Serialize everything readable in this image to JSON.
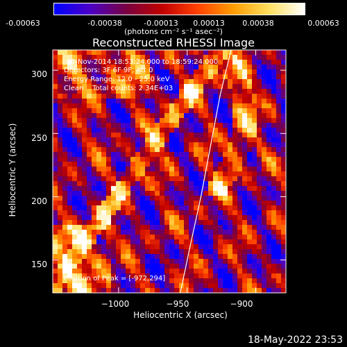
{
  "colorbar": {
    "ticks": [
      "-0.00063",
      "-0.00038",
      "-0.00013",
      "0.00013",
      "0.00038",
      "0.00063"
    ],
    "unit": "(photons cm⁻² s⁻¹ asec⁻²)",
    "colors": [
      "#0000ff",
      "#4b00c8",
      "#7a0040",
      "#c00000",
      "#ff4000",
      "#ff9a00",
      "#ffe060",
      "#ffffff"
    ]
  },
  "annotations": {
    "time_range": "2-Nov-2014 18:53:24.000 to 18:59:24.000",
    "detectors": "Detectors: 3F 6F 9F, Att 0",
    "energy": "Energy Range: 12.0 - 25.0 keV",
    "clean": "Clean    Total counts: 2.34E+03",
    "peak": "Position of Peak = [-972,294]"
  },
  "footer": {
    "timestamp": "18-May-2022 23:53"
  },
  "chart_data": {
    "type": "heatmap",
    "title": "Reconstructed RHESSI Image",
    "xlabel": "Heliocentric X (arcsec)",
    "ylabel": "Heliocentric Y (arcsec)",
    "xlim": [
      -1048,
      -878
    ],
    "ylim": [
      124,
      316
    ],
    "x_ticks": [
      -1000,
      -950,
      -900
    ],
    "x_tick_labels": [
      "−1000",
      "−950",
      "−900"
    ],
    "y_ticks": [
      150,
      200,
      250,
      300
    ],
    "y_tick_labels": [
      "150",
      "200",
      "250",
      "300"
    ],
    "zlim": [
      -0.00063,
      0.00063
    ],
    "peak_position": [
      -972,
      294
    ],
    "limb_curve": {
      "x": [
        -955,
        -948,
        -940,
        -933,
        -926,
        -918
      ],
      "y": [
        124,
        160,
        200,
        240,
        280,
        316
      ]
    }
  }
}
